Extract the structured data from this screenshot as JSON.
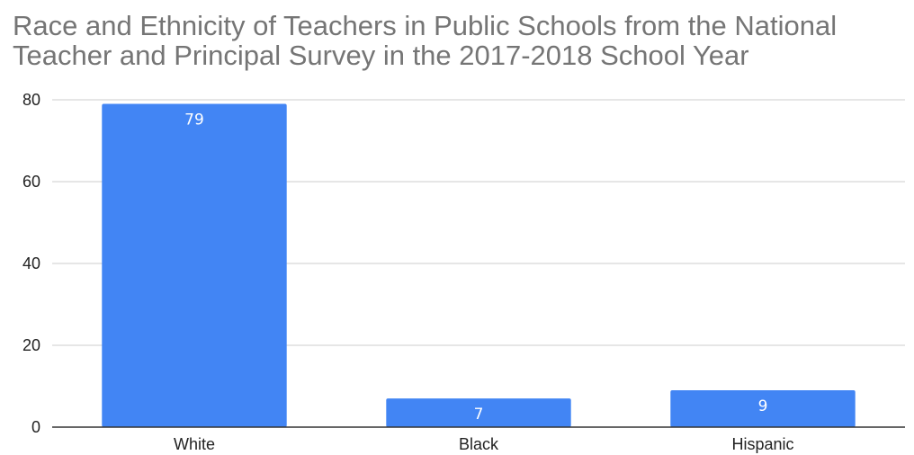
{
  "chart_data": {
    "type": "bar",
    "title": "Race and Ethnicity of Teachers in Public Schools from the National Teacher and Principal Survey in the 2017-2018 School Year",
    "categories": [
      "White",
      "Black",
      "Hispanic"
    ],
    "values": [
      79,
      7,
      9
    ],
    "data_labels": [
      "79",
      "7",
      "9"
    ],
    "xlabel": "",
    "ylabel": "",
    "ylim": [
      0,
      80
    ],
    "yticks": [
      0,
      20,
      40,
      60,
      80
    ],
    "ytick_labels": [
      "0",
      "20",
      "40",
      "60",
      "80"
    ],
    "grid": true,
    "legend": "none",
    "colors": {
      "bar": "#4285f4",
      "grid": "#cccccc",
      "axis": "#333333",
      "title": "#757575",
      "data_label": "#ffffff"
    }
  }
}
